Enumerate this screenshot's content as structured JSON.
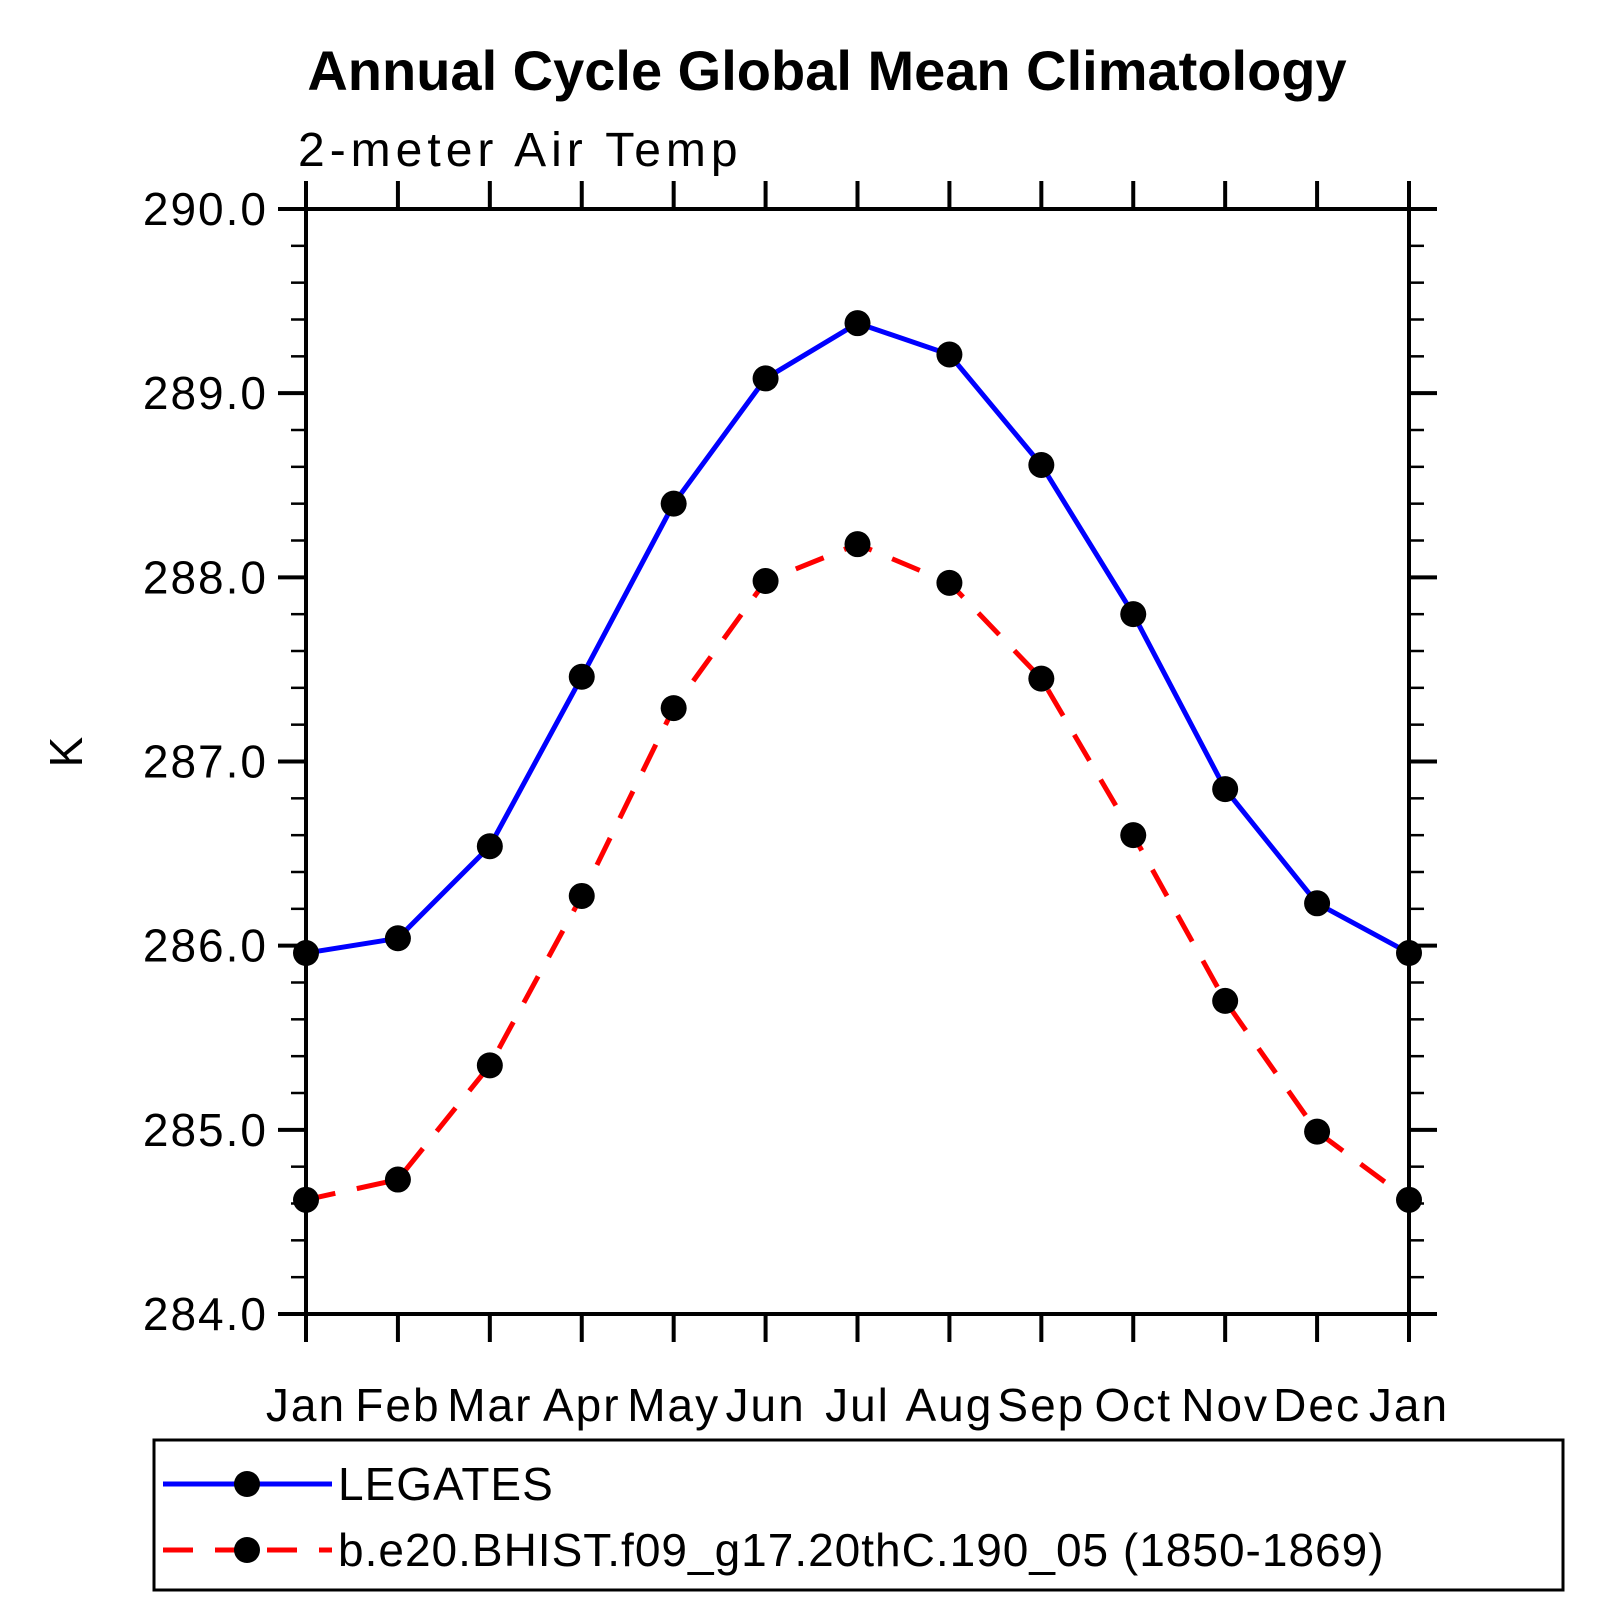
{
  "chart_data": {
    "type": "line",
    "title": "Annual Cycle Global Mean Climatology",
    "subtitle": "2-meter Air Temp",
    "ylabel": "K",
    "xlabel": "",
    "x_categories": [
      "Jan",
      "Feb",
      "Mar",
      "Apr",
      "May",
      "Jun",
      "Jul",
      "Aug",
      "Sep",
      "Oct",
      "Nov",
      "Dec",
      "Jan"
    ],
    "ylim": [
      284.0,
      290.0
    ],
    "ytick_major_step": 1.0,
    "ytick_minor_step": 0.2,
    "ytick_labels": [
      "284.0",
      "285.0",
      "286.0",
      "287.0",
      "288.0",
      "289.0",
      "290.0"
    ],
    "grid": false,
    "legend_position": "bottom-left-box",
    "axis_color": "#000000",
    "background_color": "#ffffff",
    "series": [
      {
        "name": "LEGATES",
        "color": "#0000ff",
        "line_style": "solid",
        "marker": "filled-circle",
        "marker_color": "#000000",
        "values": [
          285.96,
          286.04,
          286.54,
          287.46,
          288.4,
          289.08,
          289.38,
          289.21,
          288.61,
          287.8,
          286.85,
          286.23,
          285.96
        ]
      },
      {
        "name": "b.e20.BHIST.f09_g17.20thC.190_05 (1850-1869)",
        "color": "#ff0000",
        "line_style": "dashed",
        "marker": "filled-circle",
        "marker_color": "#000000",
        "values": [
          284.62,
          284.73,
          285.35,
          286.27,
          287.29,
          287.98,
          288.18,
          287.97,
          287.45,
          286.6,
          285.7,
          284.99,
          284.62
        ]
      }
    ]
  }
}
